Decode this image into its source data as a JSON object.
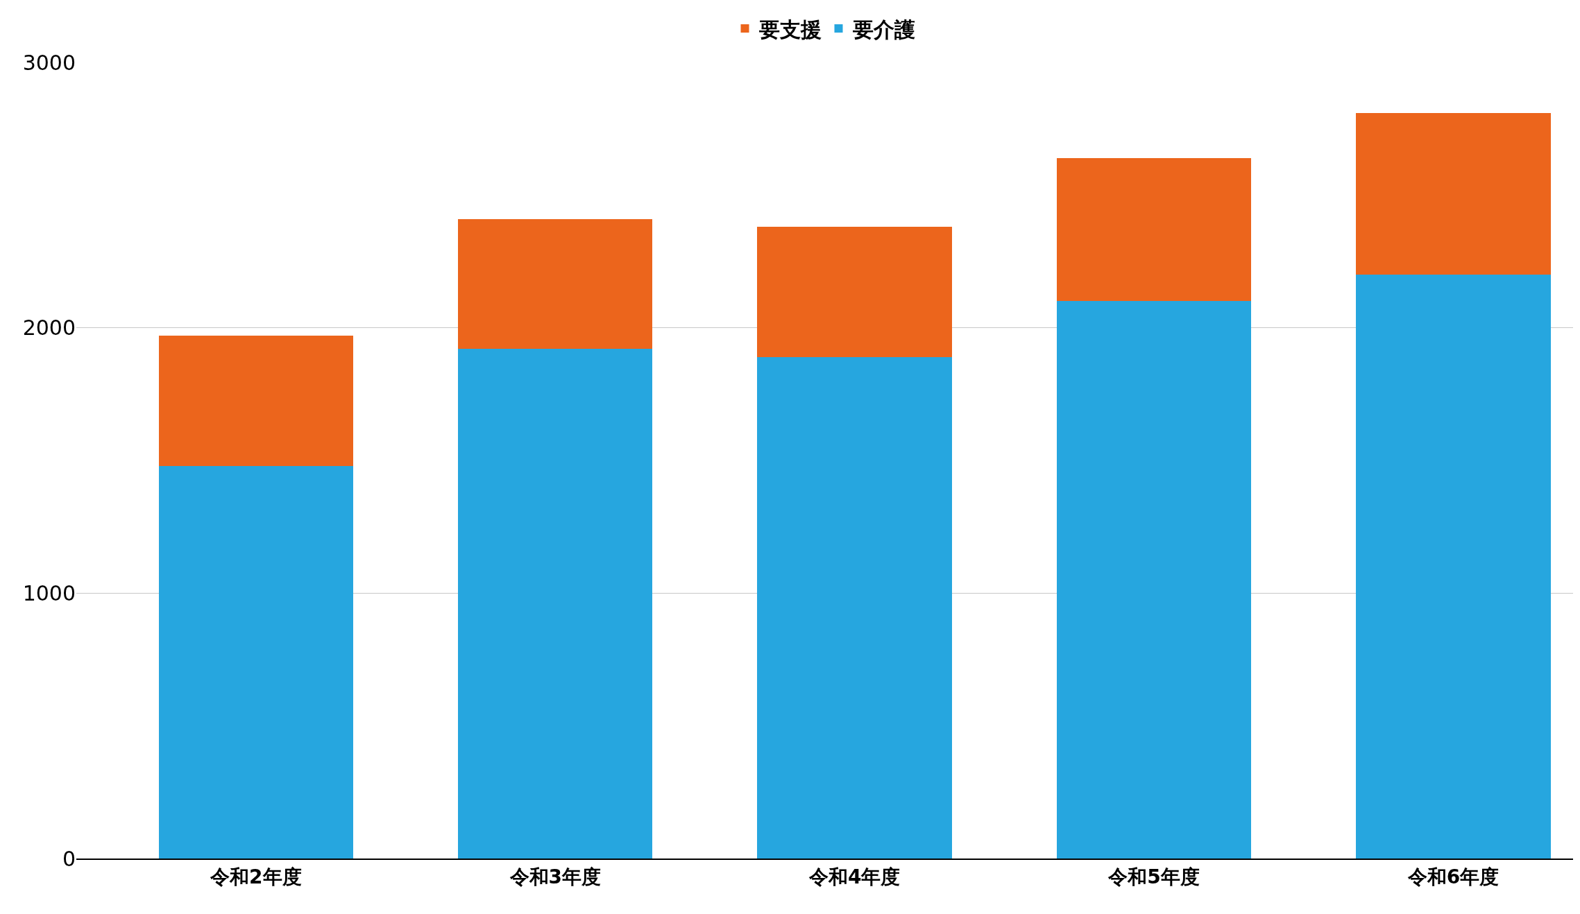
{
  "chart_data": {
    "type": "bar",
    "stacked": true,
    "categories": [
      "令和2年度",
      "令和3年度",
      "令和4年度",
      "令和5年度",
      "令和6年度"
    ],
    "series": [
      {
        "name": "要介護",
        "color": "#26a6df",
        "values": [
          1480,
          1920,
          1890,
          2100,
          2200
        ]
      },
      {
        "name": "要支援",
        "color": "#ec651c",
        "values": [
          490,
          490,
          490,
          540,
          610
        ]
      }
    ],
    "ylim": [
      0,
      3000
    ],
    "yticks": [
      0,
      1000,
      2000,
      3000
    ],
    "grid": "y",
    "legend": "top"
  }
}
